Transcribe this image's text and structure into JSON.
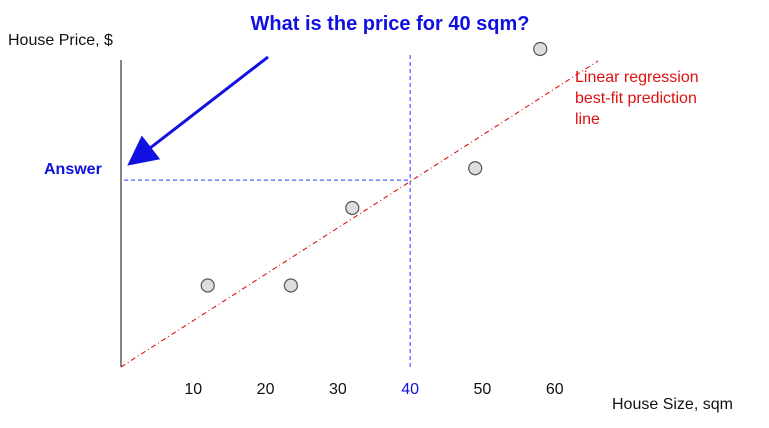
{
  "chart_data": {
    "type": "scatter",
    "title": "What is the price for 40 sqm?",
    "xlabel": "House Size, sqm",
    "ylabel": "House Price, $",
    "x_ticks": [
      10,
      20,
      30,
      40,
      50,
      60
    ],
    "highlight_x": 40,
    "points": [
      {
        "x": 12,
        "y": 2.05
      },
      {
        "x": 23.5,
        "y": 2.05
      },
      {
        "x": 32,
        "y": 4.0
      },
      {
        "x": 49,
        "y": 5.0
      },
      {
        "x": 58,
        "y": 8.0
      }
    ],
    "regression_line": {
      "label": [
        "Linear regression",
        "best-fit prediction",
        "line"
      ],
      "start": {
        "x": 0,
        "y": 0
      },
      "end": {
        "x": 66,
        "y": 7.7
      }
    },
    "answer": {
      "label": "Answer",
      "x": 40,
      "y": 4.7
    },
    "xlim": [
      0,
      70
    ],
    "ylim": [
      0,
      8.1
    ],
    "colors": {
      "title": "#1010e0",
      "answer": "#1010e0",
      "arrow": "#1010e0",
      "guide_lines": "#2d36ff",
      "regression": "#e01010",
      "regression_label": "#e01010",
      "points_fill": "#dddddd",
      "points_stroke": "#555555",
      "axis": "#333333",
      "highlight_tick": "#1010e0",
      "text": "#111111"
    }
  }
}
